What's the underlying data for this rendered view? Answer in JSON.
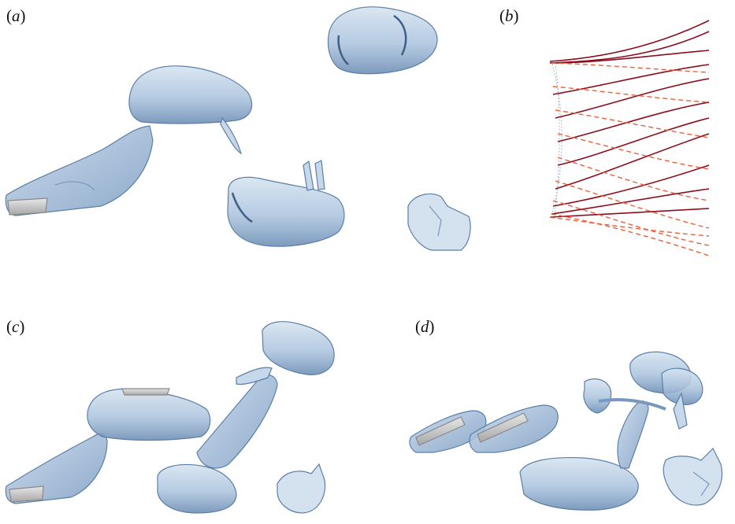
{
  "panels": {
    "a": {
      "label": "a"
    },
    "b": {
      "label": "b"
    },
    "c": {
      "label": "c"
    },
    "d": {
      "label": "d"
    }
  },
  "colors": {
    "glass_fill": "#a9c2dd",
    "glass_edge": "#5b7fa6",
    "glass_dark": "#3f5f86",
    "metal": "#c9c9c9",
    "solid_line": "#8b0d1e",
    "dashed_line": "#e8613a",
    "dotted_line": "#9aa7b8"
  }
}
